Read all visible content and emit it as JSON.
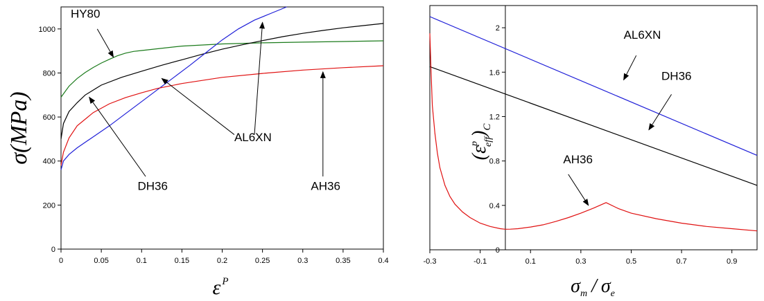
{
  "chart_data": [
    {
      "type": "line",
      "xlim": [
        0,
        0.4
      ],
      "ylim": [
        0,
        1100
      ],
      "x_ticks": [
        "0",
        "0.05",
        "0.1",
        "0.15",
        "0.2",
        "0.25",
        "0.3",
        "0.35",
        "0.4"
      ],
      "y_ticks": [
        "0",
        "200",
        "400",
        "600",
        "800",
        "1000"
      ],
      "ylabel": {
        "base": "σ",
        "paren": "(",
        "unit": "MPa",
        "close": ")"
      },
      "xlabel": {
        "base": "ε",
        "sup": "P"
      },
      "grid": false,
      "series": [
        {
          "name": "HY80",
          "color": "#1a7a1a",
          "points": [
            [
              0,
              690
            ],
            [
              0.005,
              715
            ],
            [
              0.01,
              740
            ],
            [
              0.02,
              775
            ],
            [
              0.03,
              802
            ],
            [
              0.04,
              825
            ],
            [
              0.05,
              845
            ],
            [
              0.06,
              862
            ],
            [
              0.07,
              878
            ],
            [
              0.08,
              890
            ],
            [
              0.09,
              898
            ],
            [
              0.1,
              902
            ],
            [
              0.15,
              922
            ],
            [
              0.2,
              932
            ],
            [
              0.25,
              937
            ],
            [
              0.3,
              940
            ],
            [
              0.35,
              943
            ],
            [
              0.4,
              946
            ]
          ]
        },
        {
          "name": "DH36",
          "color": "#000000",
          "points": [
            [
              0,
              500
            ],
            [
              0.003,
              570
            ],
            [
              0.01,
              625
            ],
            [
              0.02,
              665
            ],
            [
              0.03,
              700
            ],
            [
              0.05,
              745
            ],
            [
              0.075,
              780
            ],
            [
              0.1,
              808
            ],
            [
              0.125,
              835
            ],
            [
              0.15,
              860
            ],
            [
              0.175,
              885
            ],
            [
              0.2,
              908
            ],
            [
              0.225,
              928
            ],
            [
              0.25,
              947
            ],
            [
              0.275,
              965
            ],
            [
              0.3,
              980
            ],
            [
              0.325,
              993
            ],
            [
              0.35,
              1005
            ],
            [
              0.375,
              1015
            ],
            [
              0.4,
              1025
            ]
          ]
        },
        {
          "name": "AL6XN",
          "color": "#1f1fd8",
          "points": [
            [
              0,
              360
            ],
            [
              0.003,
              400
            ],
            [
              0.01,
              430
            ],
            [
              0.02,
              460
            ],
            [
              0.04,
              510
            ],
            [
              0.06,
              560
            ],
            [
              0.08,
              615
            ],
            [
              0.1,
              670
            ],
            [
              0.12,
              725
            ],
            [
              0.14,
              780
            ],
            [
              0.16,
              835
            ],
            [
              0.18,
              893
            ],
            [
              0.2,
              950
            ],
            [
              0.22,
              1000
            ],
            [
              0.24,
              1040
            ],
            [
              0.26,
              1070
            ],
            [
              0.28,
              1100
            ]
          ]
        },
        {
          "name": "AH36",
          "color": "#e01010",
          "points": [
            [
              0,
              380
            ],
            [
              0.003,
              440
            ],
            [
              0.01,
              505
            ],
            [
              0.02,
              560
            ],
            [
              0.04,
              620
            ],
            [
              0.06,
              660
            ],
            [
              0.08,
              688
            ],
            [
              0.1,
              710
            ],
            [
              0.12,
              730
            ],
            [
              0.15,
              752
            ],
            [
              0.2,
              780
            ],
            [
              0.25,
              798
            ],
            [
              0.3,
              813
            ],
            [
              0.35,
              824
            ],
            [
              0.4,
              833
            ]
          ]
        }
      ],
      "annotations": [
        {
          "text": "HY80",
          "label_at": [
            0.012,
            1052
          ],
          "arrow_from": [
            0.045,
            1000
          ],
          "arrow_to": [
            0.065,
            872
          ]
        },
        {
          "text": "AL6XN",
          "label_at": [
            0.215,
            490
          ],
          "arrow_from": [
            0.215,
            520
          ],
          "arrow_to": [
            0.125,
            775
          ],
          "arrow2_from": [
            0.24,
            520
          ],
          "arrow2_to": [
            0.25,
            1030
          ]
        },
        {
          "text": "DH36",
          "label_at": [
            0.095,
            268
          ],
          "arrow_from": [
            0.105,
            330
          ],
          "arrow_to": [
            0.035,
            690
          ]
        },
        {
          "text": "AH36",
          "label_at": [
            0.31,
            268
          ],
          "arrow_from": [
            0.325,
            330
          ],
          "arrow_to": [
            0.325,
            805
          ]
        }
      ]
    },
    {
      "type": "line",
      "xlim": [
        -0.3,
        1.0
      ],
      "ylim": [
        0,
        2.2
      ],
      "x_ticks": [
        "-0.3",
        "-0.1",
        "0.1",
        "0.3",
        "0.5",
        "0.7",
        "0.9"
      ],
      "y_ticks": [
        "0",
        "0.4",
        "0.8",
        "1.2",
        "1.6",
        "2"
      ],
      "ylabel": {
        "left": "(",
        "base": "ε",
        "sup": "p",
        "sub": "eff",
        "right": ")",
        "sub2": "C"
      },
      "xlabel": {
        "num": "σ",
        "num_sub": "m",
        "slash": "/",
        "den": "σ",
        "den_sub": "e"
      },
      "grid": false,
      "series": [
        {
          "name": "AL6XN",
          "color": "#1f1fd8",
          "points": [
            [
              -0.3,
              2.1
            ],
            [
              1.0,
              0.85
            ]
          ]
        },
        {
          "name": "DH36",
          "color": "#000000",
          "points": [
            [
              -0.3,
              1.65
            ],
            [
              1.0,
              0.58
            ]
          ]
        },
        {
          "name": "AH36",
          "color": "#e01010",
          "points": [
            [
              -0.3,
              1.95
            ],
            [
              -0.295,
              1.6
            ],
            [
              -0.29,
              1.3
            ],
            [
              -0.28,
              1.05
            ],
            [
              -0.27,
              0.87
            ],
            [
              -0.26,
              0.74
            ],
            [
              -0.24,
              0.58
            ],
            [
              -0.22,
              0.48
            ],
            [
              -0.2,
              0.41
            ],
            [
              -0.17,
              0.34
            ],
            [
              -0.14,
              0.29
            ],
            [
              -0.1,
              0.24
            ],
            [
              -0.06,
              0.21
            ],
            [
              -0.02,
              0.19
            ],
            [
              0.0,
              0.185
            ],
            [
              0.02,
              0.186
            ],
            [
              0.05,
              0.19
            ],
            [
              0.1,
              0.205
            ],
            [
              0.15,
              0.225
            ],
            [
              0.2,
              0.255
            ],
            [
              0.25,
              0.29
            ],
            [
              0.3,
              0.33
            ],
            [
              0.35,
              0.375
            ],
            [
              0.4,
              0.425
            ],
            [
              0.45,
              0.37
            ],
            [
              0.5,
              0.33
            ],
            [
              0.6,
              0.28
            ],
            [
              0.7,
              0.24
            ],
            [
              0.8,
              0.21
            ],
            [
              0.9,
              0.19
            ],
            [
              1.0,
              0.17
            ]
          ]
        }
      ],
      "annotations": [
        {
          "text": "AL6XN",
          "label_at": [
            0.47,
            1.9
          ],
          "arrow_from": [
            0.52,
            1.75
          ],
          "arrow_to": [
            0.47,
            1.53
          ]
        },
        {
          "text": "DH36",
          "label_at": [
            0.62,
            1.53
          ],
          "arrow_from": [
            0.66,
            1.4
          ],
          "arrow_to": [
            0.57,
            1.08
          ]
        },
        {
          "text": "AH36",
          "label_at": [
            0.23,
            0.78
          ],
          "arrow_from": [
            0.25,
            0.68
          ],
          "arrow_to": [
            0.33,
            0.4
          ]
        }
      ]
    }
  ]
}
